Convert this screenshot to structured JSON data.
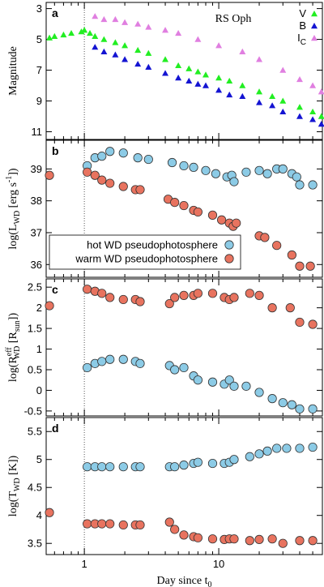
{
  "chart_data": [
    {
      "type": "scatter",
      "label": "a",
      "title": "RS Oph",
      "ylabel": [
        {
          "text": "Magnitude"
        }
      ],
      "xscale": "log",
      "xlim": [
        0.52,
        59
      ],
      "xticks": [
        1,
        10
      ],
      "xminor": [
        0.6,
        0.7,
        0.8,
        0.9,
        2,
        3,
        4,
        5,
        6,
        7,
        8,
        9,
        20,
        30,
        40,
        50
      ],
      "ylim": [
        2.6,
        11.5
      ],
      "yinvert": true,
      "yticks": [
        3,
        5,
        7,
        9,
        11
      ],
      "vline": 1,
      "legend": "upper right",
      "series": [
        {
          "name": [
            {
              "text": "V"
            }
          ],
          "color": "#22ee22",
          "marker": "triangle",
          "x": [
            0.55,
            0.6,
            0.7,
            0.8,
            0.95,
            1.0,
            1.1,
            1.2,
            1.4,
            1.7,
            2,
            2.5,
            3,
            4,
            5,
            6,
            7,
            8,
            10,
            12,
            15,
            20,
            25,
            30,
            40,
            50,
            58
          ],
          "values": [
            4.9,
            4.8,
            4.7,
            4.6,
            4.5,
            4.4,
            4.6,
            4.8,
            5.0,
            5.2,
            5.4,
            5.7,
            5.9,
            6.3,
            6.7,
            6.9,
            7.1,
            7.3,
            7.5,
            7.7,
            8.0,
            8.4,
            8.7,
            9.0,
            9.4,
            9.7,
            10.0
          ]
        },
        {
          "name": [
            {
              "text": "B"
            }
          ],
          "color": "#1414d2",
          "marker": "triangle",
          "x": [
            1.2,
            1.4,
            1.7,
            2,
            2.5,
            3,
            4,
            5,
            6,
            7,
            8,
            10,
            12,
            15,
            20,
            25,
            30,
            40,
            50,
            58
          ],
          "values": [
            5.5,
            5.8,
            6.0,
            6.3,
            6.6,
            6.8,
            7.2,
            7.5,
            7.7,
            7.9,
            8.0,
            8.3,
            8.6,
            8.7,
            9.1,
            9.3,
            9.7,
            10.0,
            10.2,
            10.5
          ]
        },
        {
          "name": [
            {
              "text": "I"
            },
            {
              "text": "C",
              "shift": "sub"
            }
          ],
          "color": "#e07fe0",
          "marker": "triangle",
          "x": [
            1.2,
            1.4,
            1.7,
            2,
            2.5,
            3,
            4,
            5,
            7,
            10,
            15,
            20,
            30,
            40,
            50,
            58
          ],
          "values": [
            3.5,
            3.7,
            3.7,
            3.9,
            4.0,
            4.2,
            4.4,
            4.6,
            5.0,
            5.4,
            5.8,
            6.3,
            7.0,
            7.6,
            8.0,
            8.4
          ]
        }
      ]
    },
    {
      "type": "scatter",
      "label": "b",
      "ylabel": [
        {
          "text": "log(L"
        },
        {
          "text": "WD",
          "shift": "sub"
        },
        {
          "text": " [erg s"
        },
        {
          "text": "-1",
          "shift": "sup"
        },
        {
          "text": "])"
        }
      ],
      "xscale": "log",
      "xlim": [
        0.52,
        59
      ],
      "xticks": [
        1,
        10
      ],
      "xminor": [
        0.6,
        0.7,
        0.8,
        0.9,
        2,
        3,
        4,
        5,
        6,
        7,
        8,
        9,
        20,
        30,
        40,
        50
      ],
      "ylim": [
        35.6,
        39.9
      ],
      "yticks": [
        36,
        37,
        38,
        39
      ],
      "vline": 1,
      "legend": "lower left",
      "series": [
        {
          "name": [
            {
              "text": "hot WD pseudophotosphere"
            }
          ],
          "color": "#8ccbe6",
          "marker": "circle",
          "x": [
            1.05,
            1.2,
            1.35,
            1.55,
            1.95,
            2.5,
            3,
            4.5,
            5.5,
            6.5,
            8,
            9.5,
            11.5,
            12.5,
            13,
            16,
            20,
            23,
            27,
            30,
            35,
            38,
            40,
            50
          ],
          "values": [
            39.1,
            39.35,
            39.4,
            39.55,
            39.5,
            39.35,
            39.3,
            39.2,
            39.1,
            39.05,
            38.95,
            38.85,
            38.75,
            38.8,
            38.6,
            38.9,
            38.95,
            38.85,
            39.0,
            39.0,
            38.85,
            38.75,
            38.5,
            38.5
          ]
        },
        {
          "name": [
            {
              "text": "warm WD pseudophotosphere"
            }
          ],
          "color": "#e8735f",
          "marker": "circle",
          "x": [
            0.55,
            1.05,
            1.2,
            1.35,
            1.55,
            1.95,
            2.4,
            2.6,
            4.2,
            4.7,
            5.5,
            6.5,
            7,
            9,
            10.5,
            12,
            12.8,
            13.5,
            20,
            22,
            27,
            35,
            40,
            48
          ],
          "values": [
            38.8,
            38.9,
            38.8,
            38.65,
            38.55,
            38.45,
            38.35,
            38.35,
            38.05,
            37.95,
            37.85,
            37.7,
            37.65,
            37.55,
            37.4,
            37.3,
            37.2,
            37.3,
            36.9,
            36.85,
            36.6,
            36.3,
            35.95,
            35.95
          ]
        }
      ]
    },
    {
      "type": "scatter",
      "label": "c",
      "ylabel": [
        {
          "text": "log(R"
        },
        {
          "text": "eff",
          "shift": "sup"
        },
        {
          "text": "WD",
          "shift": "sub"
        },
        {
          "text": " [R"
        },
        {
          "text": "sun",
          "shift": "sub"
        },
        {
          "text": "])"
        }
      ],
      "xscale": "log",
      "xlim": [
        0.52,
        59
      ],
      "xticks": [
        1,
        10
      ],
      "xminor": [
        0.6,
        0.7,
        0.8,
        0.9,
        2,
        3,
        4,
        5,
        6,
        7,
        8,
        9,
        20,
        30,
        40,
        50
      ],
      "ylim": [
        -0.62,
        2.7
      ],
      "yticks": [
        -0.5,
        0,
        0.5,
        1,
        1.5,
        2,
        2.5
      ],
      "vline": 1,
      "series": [
        {
          "color": "#e8735f",
          "marker": "circle",
          "x": [
            0.55,
            1.05,
            1.2,
            1.35,
            1.55,
            1.95,
            2.4,
            2.6,
            4.3,
            4.7,
            5.5,
            6.5,
            7,
            9,
            11,
            12,
            13,
            17,
            20,
            25,
            34,
            40,
            50
          ],
          "values": [
            2.05,
            2.45,
            2.4,
            2.35,
            2.25,
            2.2,
            2.2,
            2.15,
            2.1,
            2.25,
            2.3,
            2.3,
            2.35,
            2.35,
            2.25,
            2.2,
            2.25,
            2.35,
            2.3,
            2.0,
            2.0,
            1.65,
            1.6
          ]
        },
        {
          "color": "#8ccbe6",
          "marker": "circle",
          "x": [
            1.05,
            1.2,
            1.35,
            1.55,
            1.95,
            2.4,
            2.6,
            4.3,
            4.7,
            5.5,
            6.5,
            7,
            9,
            11,
            12,
            13,
            16,
            20,
            25,
            30,
            35,
            40,
            50
          ],
          "values": [
            0.55,
            0.65,
            0.7,
            0.75,
            0.75,
            0.7,
            0.65,
            0.6,
            0.5,
            0.55,
            0.35,
            0.25,
            0.2,
            0.15,
            0.25,
            0.1,
            0.1,
            -0.05,
            -0.2,
            -0.3,
            -0.35,
            -0.45,
            -0.45
          ]
        }
      ]
    },
    {
      "type": "scatter",
      "label": "d",
      "ylabel": [
        {
          "text": "log(T"
        },
        {
          "text": "WD",
          "shift": "sub"
        },
        {
          "text": " [K])"
        }
      ],
      "xlabel": [
        {
          "text": "Day since t"
        },
        {
          "text": "0",
          "shift": "sub"
        }
      ],
      "xscale": "log",
      "xlim": [
        0.52,
        59
      ],
      "xticks": [
        1,
        10
      ],
      "xminor": [
        0.6,
        0.7,
        0.8,
        0.9,
        2,
        3,
        4,
        5,
        6,
        7,
        8,
        9,
        20,
        30,
        40,
        50
      ],
      "ylim": [
        3.3,
        5.75
      ],
      "yticks": [
        3.5,
        4,
        4.5,
        5,
        5.5
      ],
      "vline": 1,
      "series": [
        {
          "color": "#8ccbe6",
          "marker": "circle",
          "x": [
            1.05,
            1.2,
            1.35,
            1.55,
            1.95,
            2.4,
            2.6,
            4.3,
            4.7,
            5.5,
            6.5,
            7,
            9,
            11,
            12,
            13,
            17,
            20,
            23,
            27,
            32,
            40,
            50
          ],
          "values": [
            4.87,
            4.87,
            4.87,
            4.87,
            4.87,
            4.87,
            4.87,
            4.87,
            4.87,
            4.9,
            4.93,
            4.95,
            4.93,
            4.93,
            4.95,
            5.0,
            5.05,
            5.1,
            5.15,
            5.2,
            5.2,
            5.2,
            5.22
          ]
        },
        {
          "color": "#e8735f",
          "marker": "circle",
          "x": [
            0.55,
            1.05,
            1.2,
            1.35,
            1.55,
            1.95,
            2.4,
            2.6,
            4.3,
            4.7,
            5.5,
            6.5,
            7,
            9,
            11,
            12,
            13,
            17,
            20,
            25,
            30,
            40,
            50
          ],
          "values": [
            4.05,
            3.85,
            3.85,
            3.85,
            3.85,
            3.83,
            3.83,
            3.83,
            3.88,
            3.75,
            3.65,
            3.62,
            3.6,
            3.58,
            3.57,
            3.58,
            3.58,
            3.55,
            3.57,
            3.58,
            3.5,
            3.55,
            3.55
          ]
        }
      ]
    }
  ]
}
